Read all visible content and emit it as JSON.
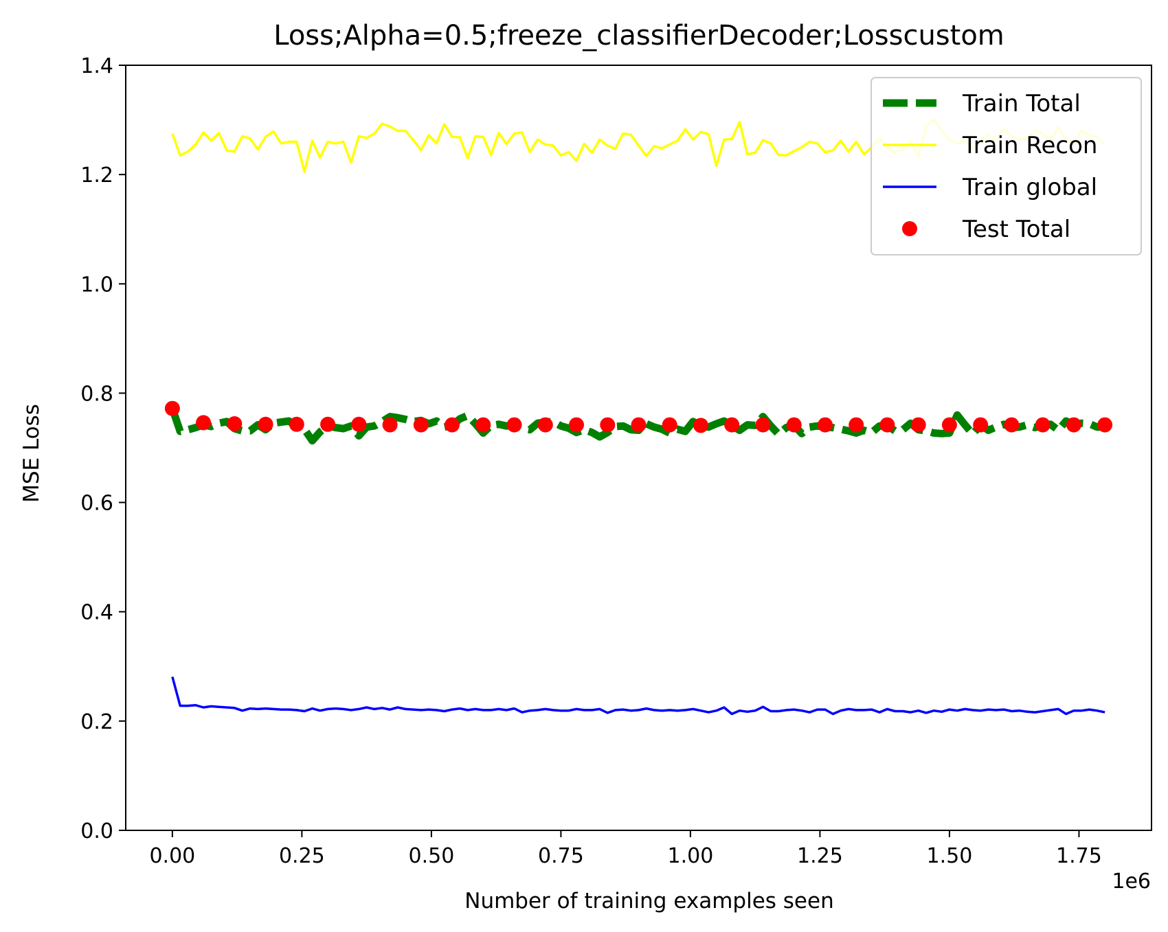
{
  "chart_data": {
    "type": "line",
    "title": "Loss;Alpha=0.5;freeze_classifierDecoder;Losscustom",
    "xlabel": "Number of training examples seen",
    "ylabel": "MSE Loss",
    "x_offset_label": "1e6",
    "xlim": [
      -0.09,
      1.89
    ],
    "ylim": [
      0,
      1.4
    ],
    "x_ticks": [
      0.0,
      0.25,
      0.5,
      0.75,
      1.0,
      1.25,
      1.5,
      1.75
    ],
    "x_tick_labels": [
      "0.00",
      "0.25",
      "0.50",
      "0.75",
      "1.00",
      "1.25",
      "1.50",
      "1.75"
    ],
    "y_ticks": [
      0.0,
      0.2,
      0.4,
      0.6,
      0.8,
      1.0,
      1.2,
      1.4
    ],
    "y_tick_labels": [
      "0.0",
      "0.2",
      "0.4",
      "0.6",
      "0.8",
      "1.0",
      "1.2",
      "1.4"
    ],
    "grid": false,
    "legend_position": "top-right",
    "series": [
      {
        "name": "Train Total",
        "style": "dashed",
        "color": "#008000",
        "x": [
          0.0,
          0.015,
          0.03,
          0.045,
          0.06,
          0.075,
          0.09,
          0.105,
          0.12,
          0.135,
          0.15,
          0.165,
          0.18,
          0.195,
          0.21,
          0.225,
          0.24,
          0.255,
          0.27,
          0.285,
          0.3,
          0.315,
          0.33,
          0.345,
          0.36,
          0.375,
          0.39,
          0.405,
          0.42,
          0.435,
          0.45,
          0.465,
          0.48,
          0.495,
          0.51,
          0.525,
          0.54,
          0.555,
          0.57,
          0.585,
          0.6,
          0.615,
          0.63,
          0.645,
          0.66,
          0.675,
          0.69,
          0.705,
          0.72,
          0.735,
          0.75,
          0.765,
          0.78,
          0.795,
          0.81,
          0.825,
          0.84,
          0.855,
          0.87,
          0.885,
          0.9,
          0.915,
          0.93,
          0.945,
          0.96,
          0.975,
          0.99,
          1.005,
          1.02,
          1.035,
          1.05,
          1.065,
          1.08,
          1.095,
          1.11,
          1.125,
          1.14,
          1.155,
          1.17,
          1.185,
          1.2,
          1.215,
          1.23,
          1.245,
          1.26,
          1.275,
          1.29,
          1.305,
          1.32,
          1.335,
          1.35,
          1.365,
          1.38,
          1.395,
          1.41,
          1.425,
          1.44,
          1.455,
          1.47,
          1.485,
          1.5,
          1.515,
          1.53,
          1.545,
          1.56,
          1.575,
          1.59,
          1.605,
          1.62,
          1.635,
          1.65,
          1.665,
          1.68,
          1.695,
          1.71,
          1.725,
          1.74,
          1.755,
          1.77,
          1.785,
          1.8
        ],
        "y": [
          0.772,
          0.73,
          0.733,
          0.737,
          0.742,
          0.739,
          0.745,
          0.748,
          0.735,
          0.731,
          0.731,
          0.742,
          0.733,
          0.745,
          0.747,
          0.749,
          0.739,
          0.734,
          0.713,
          0.729,
          0.74,
          0.737,
          0.735,
          0.74,
          0.722,
          0.738,
          0.74,
          0.748,
          0.757,
          0.755,
          0.752,
          0.748,
          0.75,
          0.744,
          0.749,
          0.738,
          0.741,
          0.753,
          0.759,
          0.744,
          0.727,
          0.741,
          0.743,
          0.74,
          0.741,
          0.736,
          0.733,
          0.745,
          0.747,
          0.748,
          0.74,
          0.736,
          0.728,
          0.733,
          0.728,
          0.72,
          0.728,
          0.739,
          0.74,
          0.733,
          0.732,
          0.744,
          0.738,
          0.734,
          0.727,
          0.734,
          0.73,
          0.748,
          0.74,
          0.738,
          0.744,
          0.749,
          0.74,
          0.732,
          0.742,
          0.741,
          0.757,
          0.74,
          0.725,
          0.737,
          0.741,
          0.726,
          0.738,
          0.74,
          0.738,
          0.737,
          0.734,
          0.731,
          0.727,
          0.732,
          0.728,
          0.74,
          0.74,
          0.731,
          0.733,
          0.745,
          0.733,
          0.731,
          0.727,
          0.726,
          0.727,
          0.76,
          0.742,
          0.725,
          0.742,
          0.732,
          0.738,
          0.743,
          0.737,
          0.738,
          0.742,
          0.737,
          0.742,
          0.743,
          0.732,
          0.749,
          0.742,
          0.745,
          0.744,
          0.738,
          0.738
        ]
      },
      {
        "name": "Train Recon",
        "style": "solid",
        "color": "#ffff00",
        "x": [
          0.0,
          0.015,
          0.03,
          0.045,
          0.06,
          0.075,
          0.09,
          0.105,
          0.12,
          0.135,
          0.15,
          0.165,
          0.18,
          0.195,
          0.21,
          0.225,
          0.24,
          0.255,
          0.27,
          0.285,
          0.3,
          0.315,
          0.33,
          0.345,
          0.36,
          0.375,
          0.39,
          0.405,
          0.42,
          0.435,
          0.45,
          0.465,
          0.48,
          0.495,
          0.51,
          0.525,
          0.54,
          0.555,
          0.57,
          0.585,
          0.6,
          0.615,
          0.63,
          0.645,
          0.66,
          0.675,
          0.69,
          0.705,
          0.72,
          0.735,
          0.75,
          0.765,
          0.78,
          0.795,
          0.81,
          0.825,
          0.84,
          0.855,
          0.87,
          0.885,
          0.9,
          0.915,
          0.93,
          0.945,
          0.96,
          0.975,
          0.99,
          1.005,
          1.02,
          1.035,
          1.05,
          1.065,
          1.08,
          1.095,
          1.11,
          1.125,
          1.14,
          1.155,
          1.17,
          1.185,
          1.2,
          1.215,
          1.23,
          1.245,
          1.26,
          1.275,
          1.29,
          1.305,
          1.32,
          1.335,
          1.35,
          1.365,
          1.38,
          1.395,
          1.41,
          1.425,
          1.44,
          1.455,
          1.47,
          1.485,
          1.5,
          1.515,
          1.53,
          1.545,
          1.56,
          1.575,
          1.59,
          1.605,
          1.62,
          1.635,
          1.65,
          1.665,
          1.68,
          1.695,
          1.71,
          1.725,
          1.74,
          1.755,
          1.77,
          1.785,
          1.8
        ],
        "y": [
          1.275,
          1.235,
          1.242,
          1.255,
          1.277,
          1.262,
          1.276,
          1.244,
          1.242,
          1.27,
          1.266,
          1.246,
          1.269,
          1.279,
          1.257,
          1.26,
          1.26,
          1.205,
          1.262,
          1.231,
          1.26,
          1.257,
          1.26,
          1.222,
          1.27,
          1.267,
          1.275,
          1.293,
          1.288,
          1.28,
          1.28,
          1.263,
          1.245,
          1.272,
          1.257,
          1.292,
          1.269,
          1.268,
          1.23,
          1.27,
          1.269,
          1.236,
          1.276,
          1.256,
          1.275,
          1.277,
          1.241,
          1.264,
          1.255,
          1.253,
          1.235,
          1.241,
          1.225,
          1.256,
          1.24,
          1.264,
          1.253,
          1.247,
          1.275,
          1.273,
          1.253,
          1.234,
          1.252,
          1.248,
          1.255,
          1.262,
          1.283,
          1.264,
          1.278,
          1.274,
          1.216,
          1.264,
          1.265,
          1.296,
          1.237,
          1.24,
          1.263,
          1.257,
          1.236,
          1.235,
          1.243,
          1.25,
          1.26,
          1.257,
          1.241,
          1.244,
          1.262,
          1.242,
          1.26,
          1.237,
          1.25,
          1.267,
          1.25,
          1.24,
          1.245,
          1.262,
          1.232,
          1.288,
          1.301,
          1.28,
          1.263,
          1.257,
          1.262,
          1.246,
          1.262,
          1.273,
          1.262,
          1.284,
          1.27,
          1.264,
          1.265,
          1.282,
          1.274,
          1.262,
          1.287,
          1.264,
          1.258,
          1.28,
          1.272,
          1.269,
          1.255
        ]
      },
      {
        "name": "Train global",
        "style": "solid",
        "color": "#0000ff",
        "x": [
          0.0,
          0.015,
          0.03,
          0.045,
          0.06,
          0.075,
          0.09,
          0.105,
          0.12,
          0.135,
          0.15,
          0.165,
          0.18,
          0.195,
          0.21,
          0.225,
          0.24,
          0.255,
          0.27,
          0.285,
          0.3,
          0.315,
          0.33,
          0.345,
          0.36,
          0.375,
          0.39,
          0.405,
          0.42,
          0.435,
          0.45,
          0.465,
          0.48,
          0.495,
          0.51,
          0.525,
          0.54,
          0.555,
          0.57,
          0.585,
          0.6,
          0.615,
          0.63,
          0.645,
          0.66,
          0.675,
          0.69,
          0.705,
          0.72,
          0.735,
          0.75,
          0.765,
          0.78,
          0.795,
          0.81,
          0.825,
          0.84,
          0.855,
          0.87,
          0.885,
          0.9,
          0.915,
          0.93,
          0.945,
          0.96,
          0.975,
          0.99,
          1.005,
          1.02,
          1.035,
          1.05,
          1.065,
          1.08,
          1.095,
          1.11,
          1.125,
          1.14,
          1.155,
          1.17,
          1.185,
          1.2,
          1.215,
          1.23,
          1.245,
          1.26,
          1.275,
          1.29,
          1.305,
          1.32,
          1.335,
          1.35,
          1.365,
          1.38,
          1.395,
          1.41,
          1.425,
          1.44,
          1.455,
          1.47,
          1.485,
          1.5,
          1.515,
          1.53,
          1.545,
          1.56,
          1.575,
          1.59,
          1.605,
          1.62,
          1.635,
          1.65,
          1.665,
          1.68,
          1.695,
          1.71,
          1.725,
          1.74,
          1.755,
          1.77,
          1.785,
          1.8
        ],
        "y": [
          0.281,
          0.228,
          0.228,
          0.229,
          0.225,
          0.227,
          0.226,
          0.225,
          0.224,
          0.219,
          0.223,
          0.222,
          0.223,
          0.222,
          0.221,
          0.221,
          0.22,
          0.218,
          0.223,
          0.219,
          0.222,
          0.223,
          0.222,
          0.22,
          0.222,
          0.225,
          0.222,
          0.224,
          0.221,
          0.225,
          0.222,
          0.221,
          0.22,
          0.221,
          0.22,
          0.218,
          0.221,
          0.223,
          0.22,
          0.222,
          0.22,
          0.22,
          0.222,
          0.22,
          0.223,
          0.216,
          0.219,
          0.22,
          0.222,
          0.22,
          0.219,
          0.219,
          0.222,
          0.22,
          0.22,
          0.222,
          0.215,
          0.22,
          0.221,
          0.219,
          0.22,
          0.223,
          0.22,
          0.219,
          0.22,
          0.219,
          0.22,
          0.222,
          0.219,
          0.216,
          0.219,
          0.225,
          0.213,
          0.219,
          0.217,
          0.219,
          0.226,
          0.218,
          0.218,
          0.22,
          0.221,
          0.219,
          0.216,
          0.221,
          0.221,
          0.213,
          0.219,
          0.222,
          0.22,
          0.22,
          0.221,
          0.216,
          0.222,
          0.218,
          0.218,
          0.216,
          0.219,
          0.215,
          0.219,
          0.217,
          0.221,
          0.219,
          0.222,
          0.22,
          0.219,
          0.221,
          0.22,
          0.221,
          0.218,
          0.219,
          0.217,
          0.216,
          0.218,
          0.22,
          0.222,
          0.213,
          0.219,
          0.219,
          0.221,
          0.219,
          0.216
        ]
      },
      {
        "name": "Test Total",
        "style": "scatter",
        "color": "#ff0000",
        "x": [
          0.0,
          0.06,
          0.12,
          0.18,
          0.24,
          0.3,
          0.36,
          0.42,
          0.48,
          0.54,
          0.6,
          0.66,
          0.72,
          0.78,
          0.84,
          0.9,
          0.96,
          1.02,
          1.08,
          1.14,
          1.2,
          1.26,
          1.32,
          1.38,
          1.44,
          1.5,
          1.56,
          1.62,
          1.68,
          1.74,
          1.8
        ],
        "y": [
          0.772,
          0.746,
          0.744,
          0.743,
          0.743,
          0.743,
          0.743,
          0.742,
          0.742,
          0.742,
          0.742,
          0.742,
          0.742,
          0.742,
          0.742,
          0.742,
          0.742,
          0.741,
          0.742,
          0.742,
          0.742,
          0.742,
          0.742,
          0.742,
          0.742,
          0.742,
          0.742,
          0.742,
          0.742,
          0.742,
          0.742
        ]
      }
    ]
  }
}
